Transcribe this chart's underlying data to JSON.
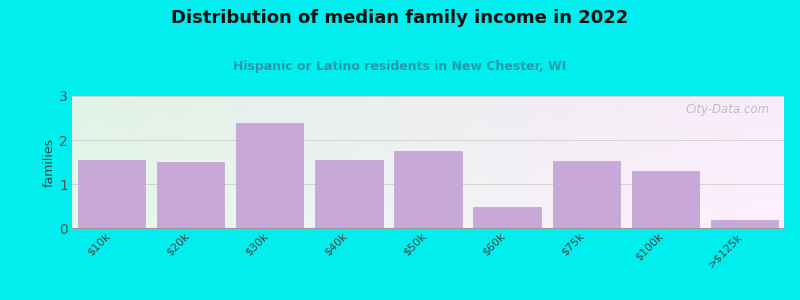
{
  "title": "Distribution of median family income in 2022",
  "subtitle": "Hispanic or Latino residents in New Chester, WI",
  "categories": [
    "$10k",
    "$20k",
    "$30k",
    "$40k",
    "$50k",
    "$60k",
    "$75k",
    "$100k",
    ">$125k"
  ],
  "values": [
    1.55,
    1.5,
    2.38,
    1.55,
    1.75,
    0.48,
    1.52,
    1.3,
    0.18
  ],
  "bar_color": "#C8A8D8",
  "bar_edge_color": "#B898C8",
  "background_color": "#00EEEE",
  "plot_bg_topleft": "#DCF0E8",
  "plot_bg_right": "#EEF8F8",
  "plot_bg_bottom": "#F0F0F8",
  "title_color": "#111111",
  "subtitle_color": "#2899A8",
  "ylabel": "families",
  "ylim": [
    0,
    3
  ],
  "yticks": [
    0,
    1,
    2,
    3
  ],
  "grid_color": "#CCCCCC",
  "watermark": "City-Data.com",
  "watermark_color": "#AABBBB",
  "title_fontsize": 13,
  "subtitle_fontsize": 9,
  "ylabel_fontsize": 9,
  "tick_fontsize": 8
}
